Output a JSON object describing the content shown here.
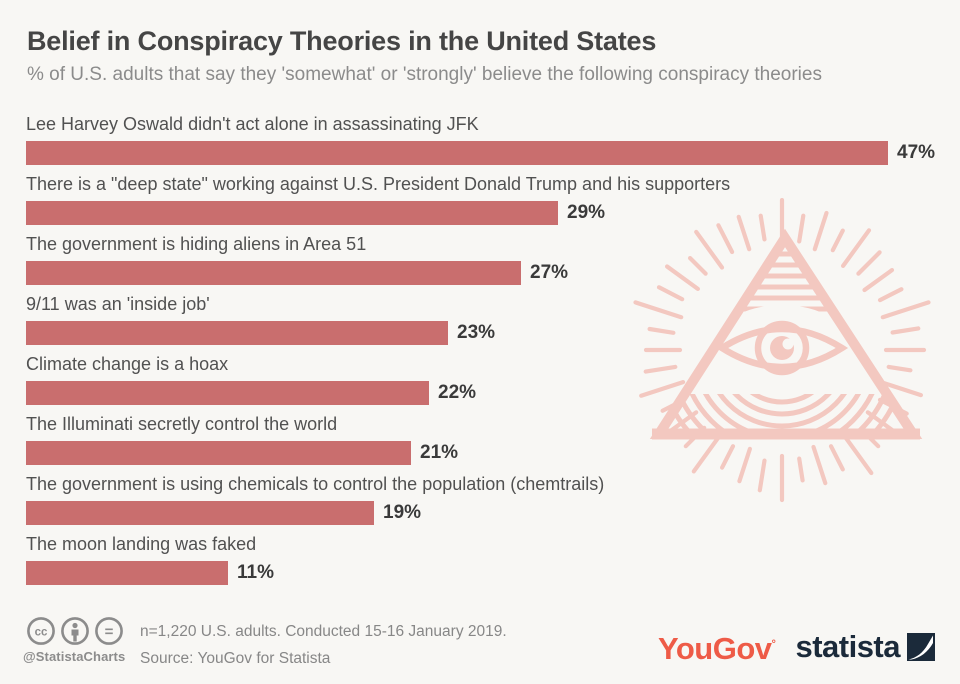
{
  "header": {
    "title": "Belief in Conspiracy Theories in the United States",
    "subtitle": "% of U.S. adults that say they 'somewhat' or 'strongly' believe the following conspiracy theories"
  },
  "chart_data": {
    "type": "bar",
    "orientation": "horizontal",
    "unit": "%",
    "categories": [
      "Lee Harvey Oswald didn't act alone in assassinating JFK",
      "There is a \"deep state\" working against U.S. President Donald Trump and his supporters",
      "The government is hiding aliens in Area 51",
      "9/11 was an 'inside job'",
      "Climate change is a hoax",
      "The Illuminati secretly control the world",
      "The government is using chemicals to control the population (chemtrails)",
      "The moon landing was faked"
    ],
    "values": [
      47,
      29,
      27,
      23,
      22,
      21,
      19,
      11
    ],
    "value_labels": [
      "47%",
      "29%",
      "27%",
      "23%",
      "22%",
      "21%",
      "19%",
      "11%"
    ],
    "xlim": [
      0,
      50
    ],
    "bar_color": "#c96e6e",
    "grid": false,
    "legend": false
  },
  "illustration": {
    "name": "all-seeing-eye-pyramid",
    "color": "#f3c8c0"
  },
  "footer": {
    "handle": "@StatistaCharts",
    "note_line1": "n=1,220 U.S. adults. Conducted 15-16 January 2019.",
    "note_line2": "Source: YouGov for Statista",
    "yougov_logo_text": "YouGov",
    "yougov_reg_mark": "°",
    "yougov_color": "#ee5b47",
    "statista_logo_text": "statista",
    "statista_color": "#1b2a3a"
  },
  "colors": {
    "background": "#f8f7f4",
    "title": "#454545",
    "subtitle": "#8b8b8b",
    "bar_label": "#515151",
    "bar_value": "#3a3a3a",
    "footer_text": "#878787",
    "footer_icons": "#8c8c8c"
  }
}
